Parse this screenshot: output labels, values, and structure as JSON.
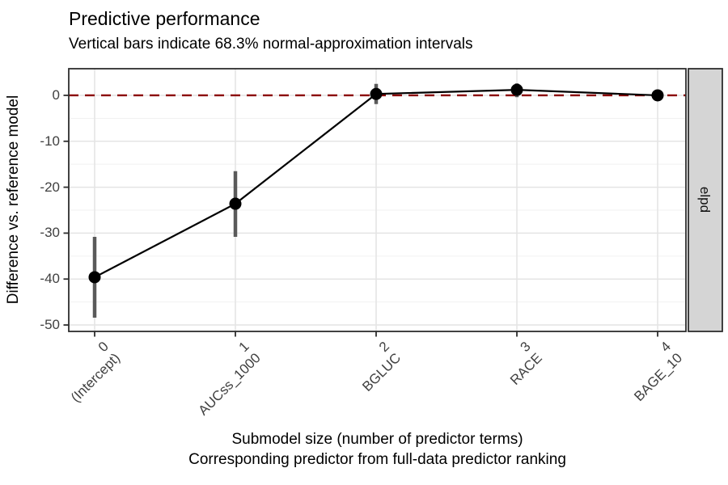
{
  "chart_data": {
    "type": "line",
    "title": "Predictive performance",
    "subtitle": "Vertical bars indicate 68.3% normal-approximation intervals",
    "ylabel": "Difference vs. reference model",
    "xlabel_line1": "Submodel size (number of predictor terms)",
    "xlabel_line2": "Corresponding predictor from full-data predictor ranking",
    "facet_strip_label": "elpd",
    "x": [
      0,
      1,
      2,
      3,
      4
    ],
    "x_tick_numbers": [
      "0",
      "1",
      "2",
      "3",
      "4"
    ],
    "x_tick_predictors": [
      "(Intercept)",
      "AUCss_1000",
      "BGLUC",
      "RACE",
      "BAGE_10"
    ],
    "y_ticks": [
      0,
      -10,
      -20,
      -30,
      -40,
      -50
    ],
    "ylim": [
      -51.4,
      5.8
    ],
    "grid": "major x+y, minor y only",
    "legend": "none",
    "reference_line_y": 0,
    "series": [
      {
        "name": "elpd difference vs. reference model",
        "values": [
          -39.6,
          -23.6,
          0.3,
          1.2,
          0.0
        ],
        "ci68_lower": [
          -48.4,
          -30.8,
          -1.9,
          -0.4,
          -0.6
        ],
        "ci68_upper": [
          -30.8,
          -16.5,
          2.5,
          2.6,
          0.6
        ]
      }
    ],
    "colors": {
      "reference_line": "#8B0000",
      "line": "#000000",
      "point": "#000000",
      "interval": "#5a5a5a",
      "strip_bg": "#d5d5d5",
      "panel_border": "#2e2e2e",
      "gridline_major": "#e4e4e4",
      "gridline_minor": "#f1f1f1",
      "tick_label": "#404040",
      "text": "#000000"
    }
  }
}
